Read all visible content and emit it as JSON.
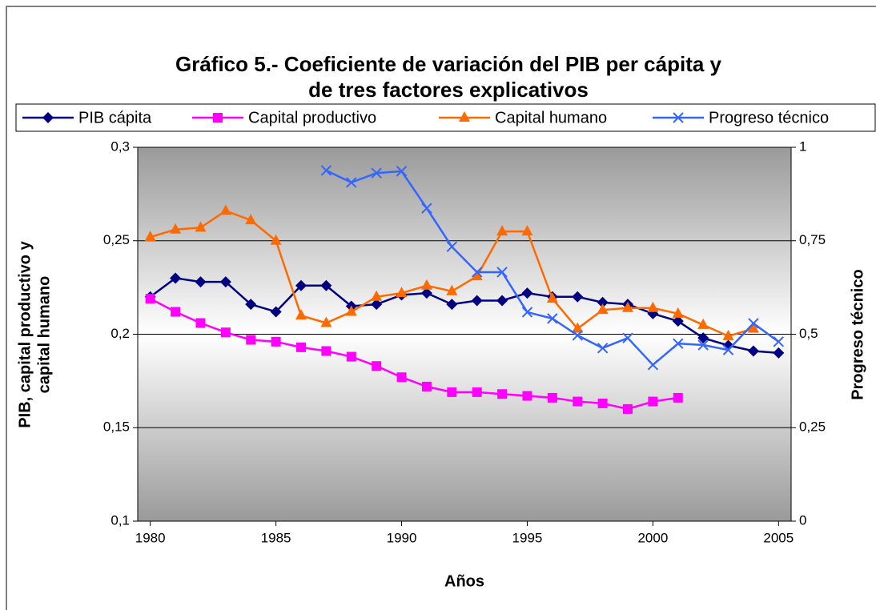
{
  "chart_data": {
    "type": "line",
    "title": [
      "Gráfico 5.- Coeficiente de variación del PIB per cápita y",
      "de tres factores explicativos"
    ],
    "xlabel": "Años",
    "ylabel": [
      "PIB, capital productivo y",
      "capital humano"
    ],
    "y2label": "Progreso técnico",
    "x": [
      1980,
      1981,
      1982,
      1983,
      1984,
      1985,
      1986,
      1987,
      1988,
      1989,
      1990,
      1991,
      1992,
      1993,
      1994,
      1995,
      1996,
      1997,
      1998,
      1999,
      2000,
      2001,
      2002,
      2003,
      2004,
      2005
    ],
    "xlim": [
      1979.5,
      2005.5
    ],
    "xticks": [
      1980,
      1985,
      1990,
      1995,
      2000,
      2005
    ],
    "ylim": [
      0.1,
      0.3
    ],
    "yticks": [
      {
        "value": 0.1,
        "label": "0,1"
      },
      {
        "value": 0.15,
        "label": "0,15"
      },
      {
        "value": 0.2,
        "label": "0,2"
      },
      {
        "value": 0.25,
        "label": "0,25"
      },
      {
        "value": 0.3,
        "label": "0,3"
      }
    ],
    "y2lim": [
      0,
      1
    ],
    "y2ticks": [
      0,
      {
        "value": 0.25,
        "label": "0,25"
      },
      {
        "value": 0.5,
        "label": "0,5"
      },
      {
        "value": 0.75,
        "label": "0,75"
      },
      1
    ],
    "grid": true,
    "legend": "top",
    "series": [
      {
        "name": "PIB cápita",
        "color": "#000080",
        "marker": "diamond",
        "values": [
          0.22,
          0.23,
          0.228,
          0.228,
          0.216,
          0.212,
          0.226,
          0.226,
          0.215,
          0.216,
          0.221,
          0.222,
          0.216,
          0.218,
          0.218,
          0.222,
          0.22,
          0.22,
          0.217,
          0.216,
          0.211,
          0.207,
          0.198,
          0.194,
          0.191,
          0.19
        ]
      },
      {
        "name": "Capital productivo",
        "color": "#FF00FF",
        "marker": "square",
        "values": [
          0.219,
          0.212,
          0.206,
          0.201,
          0.197,
          0.196,
          0.193,
          0.191,
          0.188,
          0.183,
          0.177,
          0.172,
          0.169,
          0.169,
          0.168,
          0.167,
          0.166,
          0.164,
          0.163,
          0.16,
          0.164,
          0.166,
          null,
          null,
          null,
          null
        ]
      },
      {
        "name": "Capital humano",
        "color": "#FF6A00",
        "marker": "triangle",
        "values": [
          0.252,
          0.256,
          0.257,
          0.266,
          0.261,
          0.25,
          0.21,
          0.206,
          0.212,
          0.22,
          0.222,
          0.226,
          0.223,
          0.231,
          0.255,
          0.255,
          0.219,
          0.203,
          0.213,
          0.214,
          0.214,
          0.211,
          0.205,
          0.199,
          0.203,
          null
        ]
      },
      {
        "name": "Progreso técnico",
        "color": "#3366FF",
        "marker": "x",
        "axis": "y2",
        "values": [
          null,
          null,
          null,
          null,
          null,
          null,
          null,
          0.938,
          0.906,
          0.931,
          0.936,
          0.837,
          0.734,
          0.666,
          0.666,
          0.559,
          0.542,
          0.497,
          0.463,
          0.49,
          0.418,
          0.475,
          0.471,
          0.458,
          0.529,
          0.48
        ]
      }
    ]
  }
}
